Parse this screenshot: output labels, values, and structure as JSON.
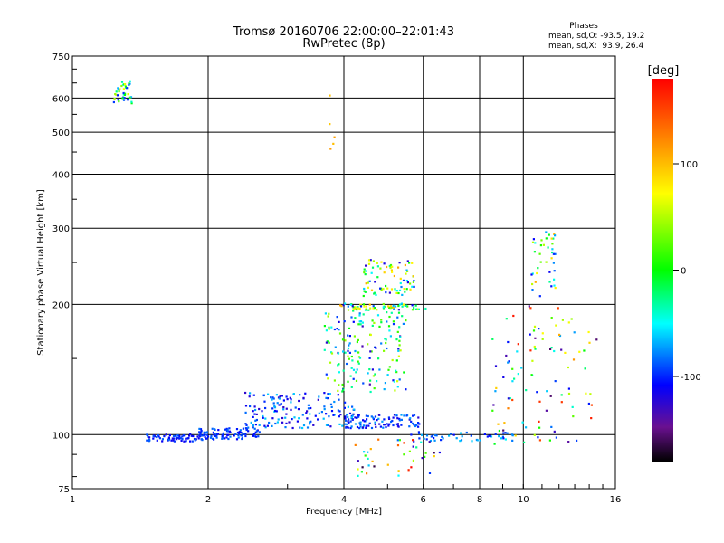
{
  "chart_data": {
    "type": "scatter",
    "title": "Tromsø 20160706 22:00:00–22:01:43",
    "subtitle": "RwPretec (8p)",
    "xlabel": "Frequency [MHz]",
    "ylabel": "Stationary phase Virtual Height [km]",
    "x_scale": "log",
    "y_scale": "log",
    "xlim": [
      1,
      16
    ],
    "ylim": [
      75,
      750
    ],
    "x_ticks": [
      1,
      2,
      4,
      6,
      8,
      10,
      16
    ],
    "y_ticks": [
      75,
      100,
      200,
      300,
      400,
      500,
      600,
      750
    ],
    "grid": true,
    "phases_box": {
      "title": "Phases",
      "line1": "mean, sd,O: -93.5, 19.2",
      "line2": "mean, sd,X:  93.9, 26.4"
    },
    "colorbar": {
      "label": "[deg]",
      "range": [
        -180,
        180
      ],
      "ticks": [
        100,
        0,
        -100
      ],
      "colormap": "rainbow"
    },
    "clusters": [
      {
        "x": [
          1.23,
          1.35
        ],
        "y": [
          585,
          660
        ],
        "phase": [
          -110,
          80
        ],
        "count": 40
      },
      {
        "x": [
          1.9,
          2.6
        ],
        "y": [
          98,
          104
        ],
        "phase": [
          -120,
          -80
        ],
        "count": 90
      },
      {
        "x": [
          1.45,
          1.95
        ],
        "y": [
          97,
          101
        ],
        "phase": [
          -120,
          -85
        ],
        "count": 70
      },
      {
        "x": [
          2.4,
          4.2
        ],
        "y": [
          104,
          126
        ],
        "phase": [
          -130,
          -60
        ],
        "count": 160
      },
      {
        "x": [
          4.0,
          5.9
        ],
        "y": [
          104,
          112
        ],
        "phase": [
          -130,
          -70
        ],
        "count": 100
      },
      {
        "x": [
          3.6,
          5.5
        ],
        "y": [
          126,
          200
        ],
        "phase": [
          -140,
          60
        ],
        "count": 170
      },
      {
        "x": [
          4.4,
          5.7
        ],
        "y": [
          210,
          255
        ],
        "phase": [
          -130,
          110
        ],
        "count": 80
      },
      {
        "x": [
          3.8,
          6.1
        ],
        "y": [
          195,
          202
        ],
        "phase": [
          -120,
          110
        ],
        "count": 60
      },
      {
        "x": [
          5.5,
          9.5
        ],
        "y": [
          97,
          102
        ],
        "phase": [
          -110,
          -60
        ],
        "count": 50
      },
      {
        "x": [
          4.2,
          6.5
        ],
        "y": [
          80,
          98
        ],
        "phase": [
          -170,
          180
        ],
        "count": 40
      },
      {
        "x": [
          8.5,
          14.5
        ],
        "y": [
          95,
          200
        ],
        "phase": [
          -160,
          180
        ],
        "count": 100
      },
      {
        "x": [
          10.3,
          11.8
        ],
        "y": [
          210,
          300
        ],
        "phase": [
          -120,
          120
        ],
        "count": 40
      },
      {
        "x": [
          3.7,
          3.8
        ],
        "y": [
          460,
          660
        ],
        "phase": [
          90,
          120
        ],
        "count": 5
      }
    ]
  }
}
